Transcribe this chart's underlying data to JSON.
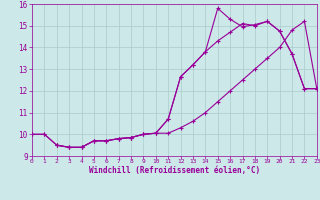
{
  "bg_color": "#cce8e8",
  "grid_color": "#aacccc",
  "line_color": "#990099",
  "marker": "+",
  "xlabel": "Windchill (Refroidissement éolien,°C)",
  "xlim": [
    0,
    23
  ],
  "ylim": [
    9,
    16
  ],
  "yticks": [
    9,
    10,
    11,
    12,
    13,
    14,
    15,
    16
  ],
  "xticks": [
    0,
    1,
    2,
    3,
    4,
    5,
    6,
    7,
    8,
    9,
    10,
    11,
    12,
    13,
    14,
    15,
    16,
    17,
    18,
    19,
    20,
    21,
    22,
    23
  ],
  "series1_x": [
    0,
    1,
    2,
    3,
    4,
    5,
    6,
    7,
    8,
    9,
    10,
    11,
    12,
    13,
    14,
    15,
    16,
    17,
    18,
    19,
    20,
    21,
    22,
    23
  ],
  "series1_y": [
    10.0,
    10.0,
    9.5,
    9.4,
    9.4,
    9.7,
    9.7,
    9.8,
    9.85,
    10.0,
    10.05,
    10.05,
    10.3,
    10.6,
    11.0,
    11.5,
    12.0,
    12.5,
    13.0,
    13.5,
    14.0,
    14.8,
    15.2,
    12.1
  ],
  "series2_x": [
    0,
    1,
    2,
    3,
    4,
    5,
    6,
    7,
    8,
    9,
    10,
    11,
    12,
    13,
    14,
    15,
    16,
    17,
    18,
    19,
    20,
    21,
    22,
    23
  ],
  "series2_y": [
    10.0,
    10.0,
    9.5,
    9.4,
    9.4,
    9.7,
    9.7,
    9.8,
    9.85,
    10.0,
    10.05,
    10.7,
    12.65,
    13.2,
    13.8,
    14.3,
    14.7,
    15.1,
    15.0,
    15.2,
    14.75,
    13.7,
    12.1,
    12.1
  ],
  "series3_x": [
    2,
    3,
    4,
    5,
    6,
    7,
    8,
    9,
    10,
    11,
    12,
    13,
    14,
    15,
    16,
    17,
    18,
    19,
    20,
    21,
    22,
    23
  ],
  "series3_y": [
    9.5,
    9.4,
    9.4,
    9.7,
    9.7,
    9.8,
    9.85,
    10.0,
    10.05,
    10.7,
    12.65,
    13.2,
    13.8,
    15.8,
    15.3,
    14.95,
    15.05,
    15.2,
    14.75,
    13.7,
    12.1,
    12.1
  ]
}
